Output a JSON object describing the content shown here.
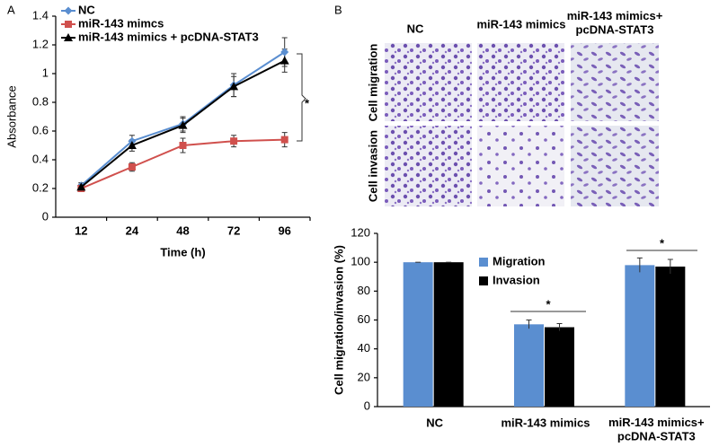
{
  "panel_labels": [
    "A",
    "B"
  ],
  "images": {
    "columns": [
      "NC",
      "miR-143 mimics",
      "miR-143 mimics+\npcDNA-STAT3"
    ],
    "rows": [
      "Cell migration",
      "Cell invasion"
    ]
  },
  "chart_data": [
    {
      "type": "line",
      "y_label": "Absorbance",
      "x_label": "Time (h)",
      "categories": [
        "12",
        "24",
        "48",
        "72",
        "96"
      ],
      "ylim": [
        0,
        1.4
      ],
      "yticks": [
        0,
        0.2,
        0.4,
        0.6,
        0.8,
        1,
        1.2,
        1.4
      ],
      "legend": "upper left",
      "annotations": [
        "*"
      ],
      "series": [
        {
          "name": "NC",
          "color": "#5a8ed0",
          "marker": "diamond",
          "values": [
            0.22,
            0.53,
            0.65,
            0.92,
            1.15
          ],
          "errors": [
            0.02,
            0.04,
            0.05,
            0.08,
            0.1
          ]
        },
        {
          "name": "miR-143 mimcs",
          "color": "#d0504d",
          "marker": "square",
          "values": [
            0.2,
            0.35,
            0.5,
            0.53,
            0.54
          ],
          "errors": [
            0.02,
            0.03,
            0.05,
            0.04,
            0.05
          ]
        },
        {
          "name": "miR-143 mimics + pcDNA-STAT3",
          "color": "#000000",
          "marker": "triangle",
          "values": [
            0.21,
            0.5,
            0.64,
            0.91,
            1.09
          ],
          "errors": [
            0.02,
            0.04,
            0.05,
            0.07,
            0.08
          ]
        }
      ]
    },
    {
      "type": "bar",
      "y_label": "Cell migration/invasion (%)",
      "categories": [
        "NC",
        "miR-143 mimics",
        "miR-143 mimics+\npcDNA-STAT3"
      ],
      "ylim": [
        0,
        120
      ],
      "yticks": [
        0,
        20,
        40,
        60,
        80,
        100,
        120
      ],
      "legend": "upper center",
      "annotations": [
        "*",
        "*"
      ],
      "series": [
        {
          "name": "Migration",
          "color": "#5a8ed0",
          "values": [
            100,
            57,
            98
          ],
          "errors": [
            0,
            3,
            5
          ]
        },
        {
          "name": "Invasion",
          "color": "#000000",
          "values": [
            100,
            55,
            97
          ],
          "errors": [
            0,
            2.5,
            5
          ]
        }
      ]
    }
  ]
}
